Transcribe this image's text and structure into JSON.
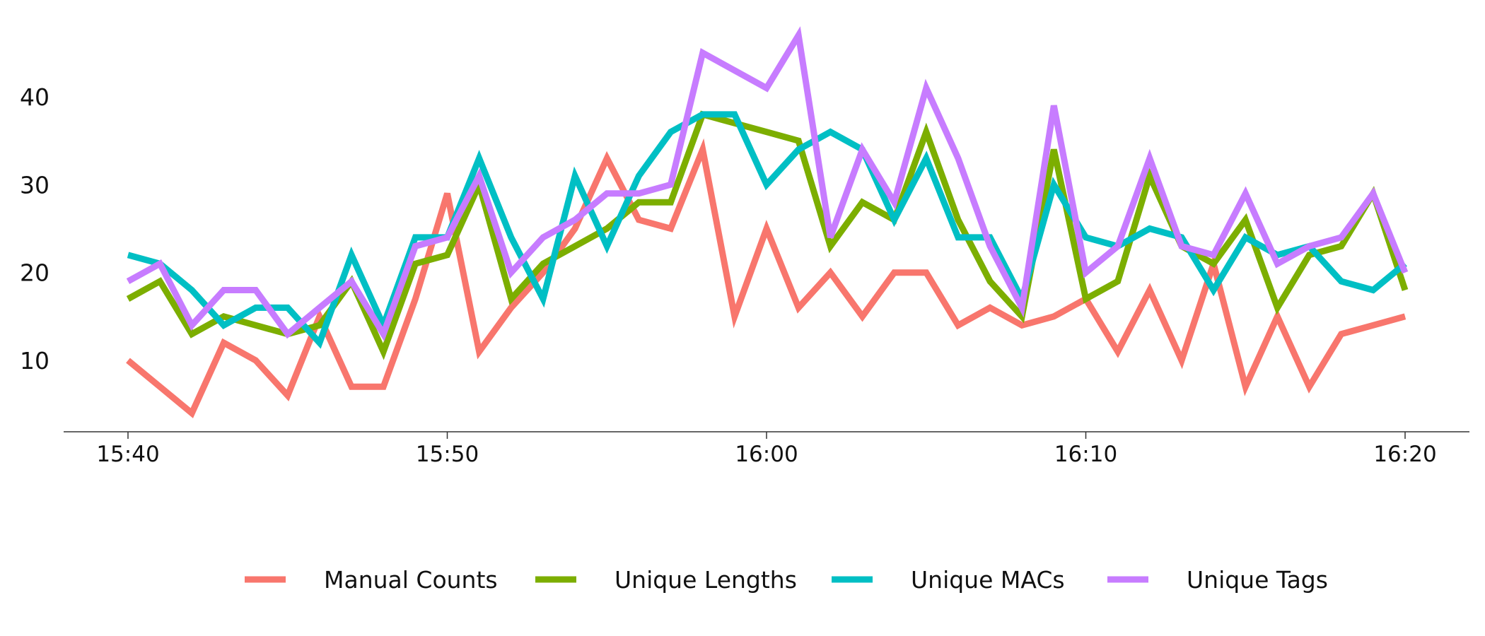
{
  "chart_data": {
    "type": "line",
    "title": "",
    "xlabel": "",
    "ylabel": "",
    "x": [
      "15:40",
      "15:41",
      "15:42",
      "15:43",
      "15:44",
      "15:45",
      "15:46",
      "15:47",
      "15:48",
      "15:49",
      "15:50",
      "15:51",
      "15:52",
      "15:53",
      "15:54",
      "15:55",
      "15:56",
      "15:57",
      "15:58",
      "15:59",
      "16:00",
      "16:01",
      "16:02",
      "16:03",
      "16:04",
      "16:05",
      "16:06",
      "16:07",
      "16:08",
      "16:09",
      "16:10",
      "16:11",
      "16:12",
      "16:13",
      "16:14",
      "16:15",
      "16:16",
      "16:17",
      "16:18",
      "16:19",
      "16:20"
    ],
    "x_ticks": [
      "15:40",
      "15:50",
      "16:00",
      "16:10",
      "16:20"
    ],
    "y_ticks": [
      10,
      20,
      30,
      40
    ],
    "ylim": [
      2,
      48
    ],
    "grid": false,
    "legend_position": "bottom",
    "series": [
      {
        "name": "Manual Counts",
        "color": "#F8766D",
        "values": [
          10,
          7,
          4,
          12,
          10,
          6,
          15,
          7,
          7,
          17,
          29,
          11,
          16,
          20,
          25,
          33,
          26,
          25,
          34,
          15,
          25,
          16,
          20,
          15,
          20,
          20,
          14,
          16,
          14,
          15,
          17,
          11,
          18,
          10,
          21,
          7,
          15,
          7,
          13,
          14,
          15
        ]
      },
      {
        "name": "Unique Lengths",
        "color": "#7CAE00",
        "values": [
          17,
          19,
          13,
          15,
          14,
          13,
          14,
          19,
          11,
          21,
          22,
          30,
          17,
          21,
          23,
          25,
          28,
          28,
          38,
          37,
          36,
          35,
          23,
          28,
          26,
          36,
          26,
          19,
          15,
          34,
          17,
          19,
          31,
          23,
          21,
          26,
          16,
          22,
          23,
          29,
          18
        ]
      },
      {
        "name": "Unique MACs",
        "color": "#00BFC4",
        "values": [
          22,
          21,
          18,
          14,
          16,
          16,
          12,
          22,
          14,
          24,
          24,
          33,
          24,
          17,
          31,
          23,
          31,
          36,
          38,
          38,
          30,
          34,
          36,
          34,
          26,
          33,
          24,
          24,
          17,
          30,
          24,
          23,
          25,
          24,
          18,
          24,
          22,
          23,
          19,
          18,
          21
        ]
      },
      {
        "name": "Unique Tags",
        "color": "#C77CFF",
        "values": [
          19,
          21,
          14,
          18,
          18,
          13,
          16,
          19,
          13,
          23,
          24,
          31,
          20,
          24,
          26,
          29,
          29,
          30,
          45,
          43,
          41,
          47,
          24,
          34,
          28,
          41,
          33,
          23,
          16,
          39,
          20,
          23,
          33,
          23,
          22,
          29,
          21,
          23,
          24,
          29,
          20
        ]
      }
    ]
  }
}
